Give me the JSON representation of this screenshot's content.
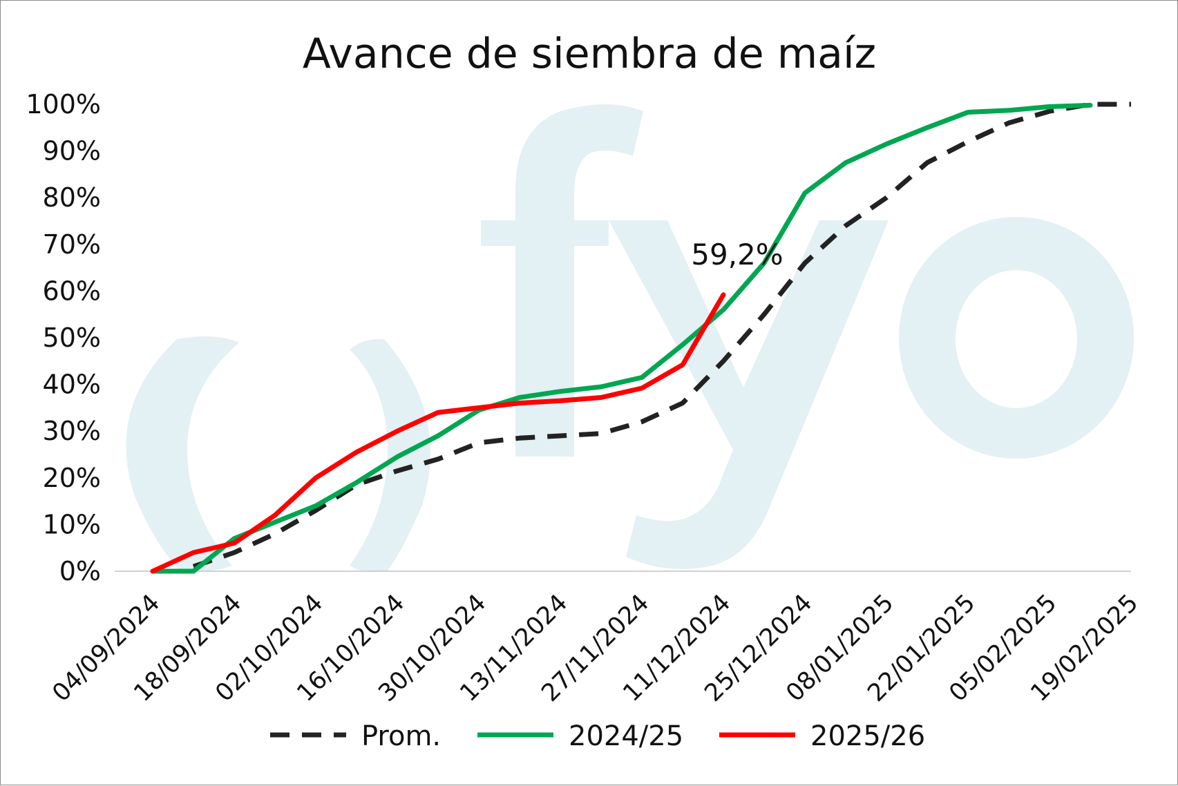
{
  "chart_data": {
    "type": "line",
    "title": "Avance de siembra de maíz",
    "xlabel": "",
    "ylabel": "",
    "ylim": [
      0,
      1
    ],
    "y_ticks": [
      "0%",
      "10%",
      "20%",
      "30%",
      "40%",
      "50%",
      "60%",
      "70%",
      "80%",
      "90%",
      "100%"
    ],
    "x": [
      "04/09/2024",
      "11/09/2024",
      "18/09/2024",
      "25/09/2024",
      "02/10/2024",
      "09/10/2024",
      "16/10/2024",
      "23/10/2024",
      "30/10/2024",
      "06/11/2024",
      "13/11/2024",
      "20/11/2024",
      "27/11/2024",
      "04/12/2024",
      "11/12/2024",
      "18/12/2024",
      "25/12/2024",
      "01/01/2025",
      "08/01/2025",
      "15/01/2025",
      "22/01/2025",
      "29/01/2025",
      "05/02/2025",
      "12/02/2025",
      "19/02/2025"
    ],
    "x_tick_labels": [
      "04/09/2024",
      "18/09/2024",
      "02/10/2024",
      "16/10/2024",
      "30/10/2024",
      "13/11/2024",
      "27/11/2024",
      "11/12/2024",
      "25/12/2024",
      "08/01/2025",
      "22/01/2025",
      "05/02/2025",
      "19/02/2025"
    ],
    "series": [
      {
        "name": "Prom.",
        "color": "#222222",
        "dash": true,
        "values": [
          null,
          0.01,
          0.04,
          0.08,
          0.13,
          0.185,
          0.215,
          0.24,
          0.275,
          0.285,
          0.29,
          0.295,
          0.32,
          0.36,
          0.45,
          0.55,
          0.66,
          0.74,
          0.8,
          0.875,
          0.92,
          0.96,
          0.985,
          1.0,
          1.0
        ]
      },
      {
        "name": "2024/25",
        "color": "#00A651",
        "dash": false,
        "values": [
          0.0,
          0.0,
          0.07,
          0.105,
          0.14,
          0.19,
          0.245,
          0.29,
          0.345,
          0.372,
          0.385,
          0.395,
          0.415,
          0.485,
          0.56,
          0.66,
          0.81,
          0.875,
          0.915,
          0.95,
          0.983,
          0.987,
          0.995,
          0.998,
          null
        ]
      },
      {
        "name": "2025/26",
        "color": "#FF0000",
        "dash": false,
        "values": [
          0.0,
          0.04,
          0.06,
          0.12,
          0.2,
          0.255,
          0.3,
          0.34,
          0.35,
          0.36,
          0.365,
          0.372,
          0.392,
          0.442,
          0.592,
          null,
          null,
          null,
          null,
          null,
          null,
          null,
          null,
          null,
          null
        ]
      }
    ],
    "annotations": [
      {
        "text": "59,2%",
        "series": "2025/26",
        "x": "11/12/2024",
        "y": 0.592
      }
    ],
    "legend_position": "bottom",
    "grid": false
  },
  "watermark": {
    "text": "fyo",
    "color": "#E3F0F4"
  }
}
